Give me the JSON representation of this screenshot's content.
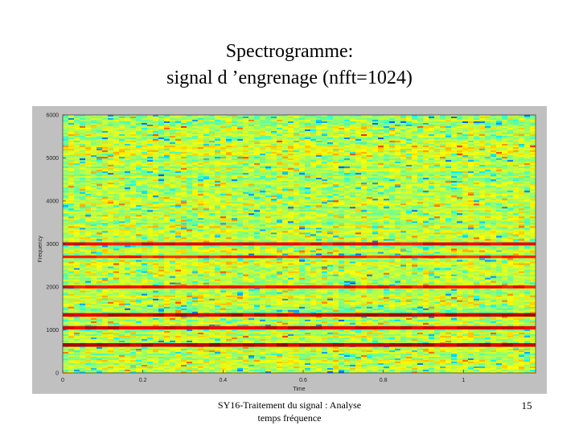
{
  "slide": {
    "title_line1": "Spectrogramme:",
    "title_line2": "signal d ’engrenage (nfft=1024)",
    "footer_line1": "SY16-Traitement du signal : Analyse",
    "footer_line2": "temps fréquence",
    "page_number": "15"
  },
  "colors": {
    "figure_background": "#c0c0c0",
    "colormap": "jet",
    "dominant_band_color": "#ff2000",
    "background_band_color": "#e8e030"
  },
  "chart_data": {
    "type": "heatmap",
    "title": "",
    "xlabel": "Time",
    "ylabel": "Frequency",
    "xlim": [
      0,
      1.18
    ],
    "ylim": [
      0,
      6000
    ],
    "x_ticks": [
      {
        "value": 0,
        "label": "0"
      },
      {
        "value": 0.2,
        "label": "0.2"
      },
      {
        "value": 0.4,
        "label": "0.4"
      },
      {
        "value": 0.6,
        "label": "0.6"
      },
      {
        "value": 0.8,
        "label": "0.8"
      },
      {
        "value": 1.0,
        "label": "1"
      }
    ],
    "y_ticks": [
      {
        "value": 0,
        "label": "0"
      },
      {
        "value": 1000,
        "label": "1000"
      },
      {
        "value": 2000,
        "label": "2000"
      },
      {
        "value": 3000,
        "label": "3000"
      },
      {
        "value": 4000,
        "label": "4000"
      },
      {
        "value": 5000,
        "label": "5000"
      },
      {
        "value": 6000,
        "label": "6000"
      }
    ],
    "dominant_frequency_bands_hz": [
      650,
      1050,
      1350,
      2000,
      2700,
      3000
    ],
    "dominant_band_intensity": [
      1.0,
      0.85,
      0.95,
      0.7,
      0.55,
      0.75
    ],
    "grid": false,
    "colorbar": false
  }
}
